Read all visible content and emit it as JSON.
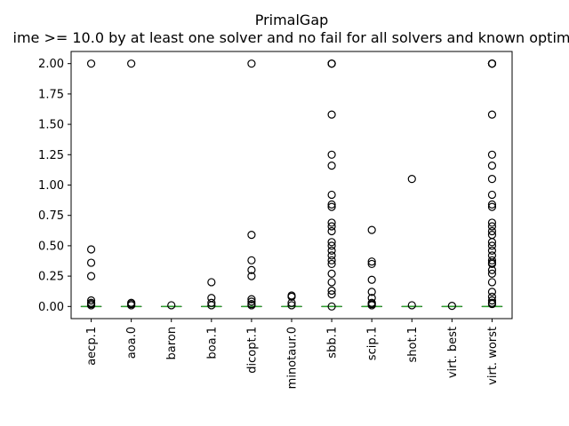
{
  "chart_data": {
    "type": "box",
    "title": "PrimalGap",
    "subtitle": "ime >= 10.0 by at least one solver and no fail for all solvers and known optim",
    "xlabel": "",
    "ylabel": "",
    "ylim": [
      -0.1,
      2.1
    ],
    "yticks": [
      0.0,
      0.25,
      0.5,
      0.75,
      1.0,
      1.25,
      1.5,
      1.75,
      2.0
    ],
    "ytick_labels": [
      "0.00",
      "0.25",
      "0.50",
      "0.75",
      "1.00",
      "1.25",
      "1.50",
      "1.75",
      "2.00"
    ],
    "grid": false,
    "categories": [
      "aecp.1",
      "aoa.0",
      "baron",
      "boa.1",
      "dicopt.1",
      "minotaur.0",
      "sbb.1",
      "scip.1",
      "shot.1",
      "virt. best",
      "virt. worst"
    ],
    "boxes": [
      {
        "median": 0.0,
        "q1": 0.0,
        "q3": 0.0,
        "whisker_low": 0.0,
        "whisker_high": 0.0,
        "outliers": [
          2.0,
          0.47,
          0.36,
          0.25,
          0.05,
          0.03,
          0.02,
          0.01
        ]
      },
      {
        "median": 0.0,
        "q1": 0.0,
        "q3": 0.0,
        "whisker_low": 0.0,
        "whisker_high": 0.0,
        "outliers": [
          2.0,
          0.03,
          0.02,
          0.01
        ]
      },
      {
        "median": 0.0,
        "q1": 0.0,
        "q3": 0.0,
        "whisker_low": 0.0,
        "whisker_high": 0.0,
        "outliers": [
          0.01
        ]
      },
      {
        "median": 0.0,
        "q1": 0.0,
        "q3": 0.0,
        "whisker_low": 0.0,
        "whisker_high": 0.0,
        "outliers": [
          0.2,
          0.07,
          0.03,
          0.01
        ]
      },
      {
        "median": 0.0,
        "q1": 0.0,
        "q3": 0.0,
        "whisker_low": 0.0,
        "whisker_high": 0.0,
        "outliers": [
          2.0,
          0.59,
          0.38,
          0.3,
          0.25,
          0.06,
          0.04,
          0.02,
          0.01
        ]
      },
      {
        "median": 0.0,
        "q1": 0.0,
        "q3": 0.0,
        "whisker_low": 0.0,
        "whisker_high": 0.0,
        "outliers": [
          0.09,
          0.08,
          0.03,
          0.01
        ]
      },
      {
        "median": 0.0,
        "q1": 0.0,
        "q3": 0.0,
        "whisker_low": 0.0,
        "whisker_high": 0.0,
        "outliers": [
          2.0,
          2.0,
          2.0,
          1.58,
          1.25,
          1.16,
          0.92,
          0.84,
          0.82,
          0.69,
          0.66,
          0.62,
          0.53,
          0.5,
          0.46,
          0.42,
          0.38,
          0.35,
          0.27,
          0.2,
          0.13,
          0.1,
          0.0
        ]
      },
      {
        "median": 0.0,
        "q1": 0.0,
        "q3": 0.0,
        "whisker_low": 0.0,
        "whisker_high": 0.0,
        "outliers": [
          0.63,
          0.37,
          0.35,
          0.22,
          0.12,
          0.07,
          0.03,
          0.02,
          0.01
        ]
      },
      {
        "median": 0.0,
        "q1": 0.0,
        "q3": 0.0,
        "whisker_low": 0.0,
        "whisker_high": 0.0,
        "outliers": [
          1.05,
          0.01
        ]
      },
      {
        "median": 0.0,
        "q1": 0.0,
        "q3": 0.0,
        "whisker_low": 0.0,
        "whisker_high": 0.0,
        "outliers": [
          0.005
        ]
      },
      {
        "median": 0.0,
        "q1": 0.0,
        "q3": 0.0,
        "whisker_low": 0.0,
        "whisker_high": 0.0,
        "outliers": [
          2.0,
          2.0,
          2.0,
          2.0,
          1.58,
          1.25,
          1.16,
          1.05,
          0.92,
          0.84,
          0.82,
          0.69,
          0.66,
          0.62,
          0.59,
          0.53,
          0.5,
          0.46,
          0.42,
          0.38,
          0.36,
          0.35,
          0.3,
          0.27,
          0.2,
          0.12,
          0.08,
          0.05,
          0.03,
          0.02
        ]
      }
    ],
    "colors": {
      "median": "#2ca02c",
      "box": "#000000",
      "outlier_edge": "#000000"
    }
  }
}
